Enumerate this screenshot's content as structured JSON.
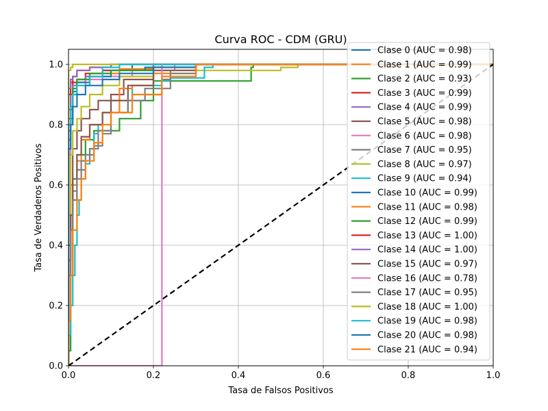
{
  "chart_data": {
    "type": "line",
    "title": "Curva ROC - CDM (GRU)",
    "xlabel": "Tasa de Falsos Positivos",
    "ylabel": "Tasa de Verdaderos Positivos",
    "xlim": [
      0.0,
      1.0
    ],
    "ylim": [
      0.0,
      1.05
    ],
    "xticks": [
      "0.0",
      "0.2",
      "0.4",
      "0.6",
      "0.8",
      "1.0"
    ],
    "yticks": [
      "0.0",
      "0.2",
      "0.4",
      "0.6",
      "0.8",
      "1.0"
    ],
    "grid": true,
    "legend_position": "upper-right",
    "diagonal": {
      "x": [
        0,
        1
      ],
      "y": [
        0,
        1
      ],
      "color": "#000000",
      "style": "dashed"
    },
    "series": [
      {
        "name": "Clase 0 (AUC = 0.98)",
        "color": "#1f77b4",
        "x": [
          0,
          0,
          0.005,
          0.01,
          0.02,
          0.04,
          0.08,
          0.15,
          0.3,
          1.0
        ],
        "y": [
          0,
          0.55,
          0.72,
          0.82,
          0.9,
          0.94,
          0.96,
          0.98,
          1.0,
          1.0
        ]
      },
      {
        "name": "Clase 1 (AUC = 0.99)",
        "color": "#ff7f0e",
        "x": [
          0,
          0,
          0.005,
          0.01,
          0.02,
          0.05,
          0.12,
          0.2,
          0.49,
          1.0
        ],
        "y": [
          0,
          0.6,
          0.75,
          0.86,
          0.92,
          0.95,
          0.97,
          0.985,
          1.0,
          1.0
        ]
      },
      {
        "name": "Clase 2 (AUC = 0.93)",
        "color": "#2ca02c",
        "x": [
          0,
          0.005,
          0.01,
          0.02,
          0.04,
          0.06,
          0.12,
          0.17,
          0.2,
          0.22,
          0.43,
          0.435,
          1.0
        ],
        "y": [
          0,
          0.05,
          0.3,
          0.55,
          0.7,
          0.75,
          0.78,
          0.82,
          0.88,
          0.945,
          0.945,
          0.99,
          1.0
        ]
      },
      {
        "name": "Clase 3 (AUC = 0.99)",
        "color": "#d62728",
        "x": [
          0,
          0,
          0.005,
          0.01,
          0.02,
          0.04,
          0.08,
          0.2,
          1.0
        ],
        "y": [
          0,
          0.7,
          0.82,
          0.9,
          0.94,
          0.95,
          0.97,
          0.98,
          1.0
        ]
      },
      {
        "name": "Clase 4 (AUC = 0.99)",
        "color": "#9467bd",
        "x": [
          0,
          0,
          0.005,
          0.01,
          0.02,
          0.04,
          0.1,
          0.2,
          1.0
        ],
        "y": [
          0,
          0.75,
          0.85,
          0.9,
          0.93,
          0.94,
          0.96,
          0.98,
          1.0
        ]
      },
      {
        "name": "Clase 5 (AUC = 0.98)",
        "color": "#8c564b",
        "x": [
          0,
          0.005,
          0.01,
          0.02,
          0.03,
          0.05,
          0.07,
          0.1,
          0.13,
          0.2,
          0.3,
          1.0
        ],
        "y": [
          0,
          0.4,
          0.6,
          0.72,
          0.78,
          0.82,
          0.85,
          0.88,
          0.9,
          0.95,
          0.99,
          1.0
        ]
      },
      {
        "name": "Clase 6 (AUC = 0.98)",
        "color": "#e377c2",
        "x": [
          0,
          0.005,
          0.01,
          0.02,
          0.04,
          0.08,
          0.15,
          0.25,
          1.0
        ],
        "y": [
          0,
          0.7,
          0.85,
          0.9,
          0.93,
          0.95,
          0.96,
          0.98,
          1.0
        ]
      },
      {
        "name": "Clase 7 (AUC = 0.95)",
        "color": "#7f7f7f",
        "x": [
          0,
          0.005,
          0.01,
          0.02,
          0.04,
          0.06,
          0.08,
          0.1,
          0.14,
          0.18,
          0.22,
          0.24,
          0.3,
          1.0
        ],
        "y": [
          0,
          0.35,
          0.5,
          0.58,
          0.65,
          0.7,
          0.73,
          0.77,
          0.84,
          0.88,
          0.9,
          0.95,
          0.98,
          1.0
        ]
      },
      {
        "name": "Clase 8 (AUC = 0.97)",
        "color": "#bcbd22",
        "x": [
          0,
          0.005,
          0.01,
          0.02,
          0.03,
          0.05,
          0.08,
          0.12,
          0.2,
          0.5,
          0.54,
          1.0
        ],
        "y": [
          0,
          0.5,
          0.7,
          0.78,
          0.82,
          0.86,
          0.9,
          0.93,
          0.96,
          0.98,
          0.99,
          1.0
        ]
      },
      {
        "name": "Clase 9 (AUC = 0.94)",
        "color": "#17becf",
        "x": [
          0,
          0.005,
          0.01,
          0.015,
          0.02,
          0.025,
          0.03,
          0.04,
          0.05,
          0.06,
          0.07,
          0.08,
          0.1,
          0.15,
          0.22,
          0.24,
          0.32,
          0.34,
          1.0
        ],
        "y": [
          0,
          0.1,
          0.2,
          0.3,
          0.4,
          0.5,
          0.55,
          0.62,
          0.67,
          0.72,
          0.77,
          0.8,
          0.84,
          0.88,
          0.93,
          0.945,
          0.955,
          0.99,
          1.0
        ]
      },
      {
        "name": "Clase 10 (AUC = 0.99)",
        "color": "#1f77b4",
        "x": [
          0,
          0,
          0.005,
          0.01,
          0.02,
          0.05,
          0.1,
          0.18,
          0.3,
          1.0
        ],
        "y": [
          0,
          0.65,
          0.78,
          0.86,
          0.91,
          0.94,
          0.96,
          0.98,
          0.99,
          1.0
        ]
      },
      {
        "name": "Clase 11 (AUC = 0.98)",
        "color": "#ff7f0e",
        "x": [
          0,
          0.005,
          0.01,
          0.02,
          0.03,
          0.05,
          0.08,
          0.12,
          0.15,
          0.2,
          0.3,
          1.0
        ],
        "y": [
          0,
          0.3,
          0.45,
          0.6,
          0.68,
          0.75,
          0.8,
          0.84,
          0.92,
          0.93,
          0.97,
          1.0
        ]
      },
      {
        "name": "Clase 12 (AUC = 0.99)",
        "color": "#2ca02c",
        "x": [
          0,
          0,
          0.005,
          0.01,
          0.02,
          0.05,
          0.1,
          0.2,
          0.3,
          1.0
        ],
        "y": [
          0,
          0.6,
          0.75,
          0.85,
          0.92,
          0.95,
          0.97,
          0.98,
          0.99,
          1.0
        ]
      },
      {
        "name": "Clase 13 (AUC = 1.00)",
        "color": "#d62728",
        "x": [
          0,
          0,
          0.005,
          0.01,
          0.02,
          0.05,
          0.1,
          1.0
        ],
        "y": [
          0,
          0.85,
          0.9,
          0.94,
          0.96,
          0.98,
          0.99,
          1.0
        ]
      },
      {
        "name": "Clase 14 (AUC = 1.00)",
        "color": "#9467bd",
        "x": [
          0,
          0,
          0.005,
          0.01,
          0.02,
          0.05,
          0.1,
          1.0
        ],
        "y": [
          0,
          0.88,
          0.92,
          0.95,
          0.96,
          0.98,
          0.99,
          1.0
        ]
      },
      {
        "name": "Clase 15 (AUC = 0.97)",
        "color": "#8c564b",
        "x": [
          0,
          0.005,
          0.01,
          0.02,
          0.03,
          0.05,
          0.08,
          0.1,
          0.14,
          0.2,
          0.3,
          1.0
        ],
        "y": [
          0,
          0.35,
          0.5,
          0.62,
          0.7,
          0.76,
          0.8,
          0.84,
          0.88,
          0.93,
          0.98,
          1.0
        ]
      },
      {
        "name": "Clase 16 (AUC = 0.78)",
        "color": "#e377c2",
        "x": [
          0,
          0.22,
          0.22,
          1.0
        ],
        "y": [
          0,
          0,
          1.0,
          1.0
        ]
      },
      {
        "name": "Clase 17 (AUC = 0.95)",
        "color": "#7f7f7f",
        "x": [
          0,
          0.005,
          0.01,
          0.02,
          0.03,
          0.05,
          0.07,
          0.1,
          0.14,
          0.18,
          0.24,
          0.3,
          1.0
        ],
        "y": [
          0,
          0.3,
          0.45,
          0.55,
          0.62,
          0.68,
          0.72,
          0.78,
          0.84,
          0.88,
          0.92,
          0.97,
          1.0
        ]
      },
      {
        "name": "Clase 18 (AUC = 1.00)",
        "color": "#bcbd22",
        "x": [
          0,
          0,
          0.005,
          0.01,
          0.02,
          1.0
        ],
        "y": [
          0,
          0.95,
          0.98,
          0.99,
          1.0,
          1.0
        ]
      },
      {
        "name": "Clase 19 (AUC = 0.98)",
        "color": "#17becf",
        "x": [
          0,
          0,
          0.005,
          0.01,
          0.02,
          0.05,
          0.08,
          0.12,
          0.2,
          1.0
        ],
        "y": [
          0,
          0.7,
          0.8,
          0.86,
          0.9,
          0.93,
          0.96,
          0.99,
          1.0,
          1.0
        ]
      },
      {
        "name": "Clase 20 (AUC = 0.98)",
        "color": "#1f77b4",
        "x": [
          0,
          0,
          0.005,
          0.01,
          0.02,
          0.04,
          0.08,
          0.12,
          0.2,
          0.3,
          1.0
        ],
        "y": [
          0,
          0.6,
          0.72,
          0.8,
          0.86,
          0.9,
          0.93,
          0.95,
          0.97,
          0.99,
          1.0
        ]
      },
      {
        "name": "Clase 21 (AUC = 0.94)",
        "color": "#ff7f0e",
        "x": [
          0,
          0.005,
          0.01,
          0.02,
          0.03,
          0.04,
          0.06,
          0.08,
          0.1,
          0.15,
          0.22,
          0.3,
          1.0
        ],
        "y": [
          0,
          0.15,
          0.3,
          0.45,
          0.55,
          0.62,
          0.68,
          0.74,
          0.8,
          0.84,
          0.9,
          0.96,
          1.0
        ]
      }
    ]
  }
}
